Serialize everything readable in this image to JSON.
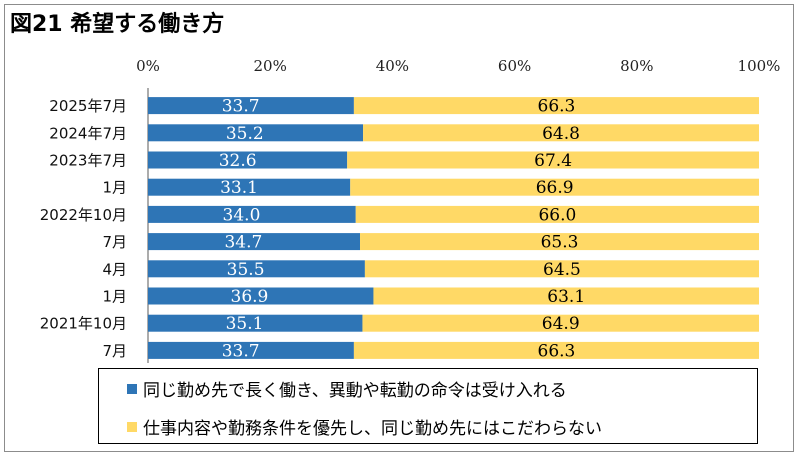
{
  "title": "図21 希望する働き方",
  "chart_data": {
    "type": "bar",
    "orientation": "horizontal",
    "stacked": "percent",
    "categories": [
      "2025年7月",
      "2024年7月",
      "2023年7月",
      "1月",
      "2022年10月",
      "7月",
      "4月",
      "1月",
      "2021年10月",
      "7月"
    ],
    "series": [
      {
        "name": "同じ勤め先で長く働き、異動や転勤の命令は受け入れる",
        "color": "#2e75b6",
        "values": [
          33.7,
          35.2,
          32.6,
          33.1,
          34.0,
          34.7,
          35.5,
          36.9,
          35.1,
          33.7
        ],
        "labels": [
          "33.7",
          "35.2",
          "32.6",
          "33.1",
          "34.0",
          "34.7",
          "35.5",
          "36.9",
          "35.1",
          "33.7"
        ]
      },
      {
        "name": "仕事内容や勤務条件を優先し、同じ勤め先にはこだわらない",
        "color": "#ffd966",
        "values": [
          66.3,
          64.8,
          67.4,
          66.9,
          66.0,
          65.3,
          64.5,
          63.1,
          64.9,
          66.3
        ],
        "labels": [
          "66.3",
          "64.8",
          "67.4",
          "66.9",
          "66.0",
          "65.3",
          "64.5",
          "63.1",
          "64.9",
          "66.3"
        ]
      }
    ],
    "xlim": [
      0,
      100
    ],
    "xticks": [
      "0%",
      "20%",
      "40%",
      "60%",
      "80%",
      "100%"
    ],
    "xaxis_position": "top",
    "legend_position": "bottom",
    "grid": false
  }
}
